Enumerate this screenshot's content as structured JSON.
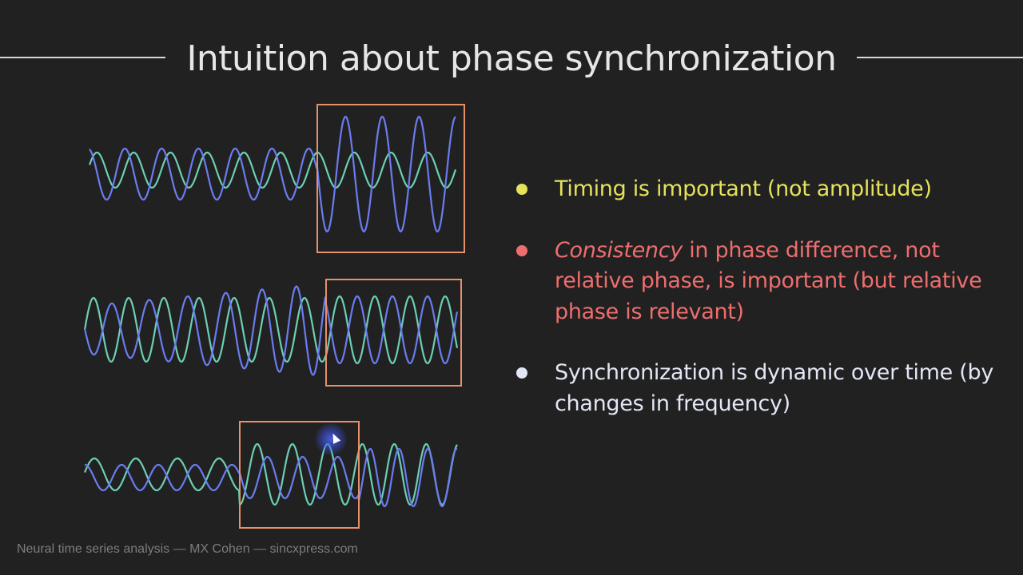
{
  "slide": {
    "title": "Intuition about phase synchronization",
    "footer": "Neural time series analysis — MX Cohen — sincxpress.com"
  },
  "bullets": [
    {
      "color": "#e6e25c",
      "text": "Timing is important (not amplitude)"
    },
    {
      "color": "#ee6e6e",
      "emphasis": "Consistency",
      "text": " in phase difference, not relative phase, is important (but relative phase is relevant)"
    },
    {
      "color": "#e3e6f5",
      "text": "Synchronization is dynamic over time (by changes in frequency)"
    }
  ],
  "colors": {
    "background": "#212121",
    "wave_blue": "#6b7cf0",
    "wave_teal": "#6ccfb4",
    "highlight_box": "#e8906a"
  },
  "icons": {
    "cursor": "mouse-pointer-icon"
  }
}
